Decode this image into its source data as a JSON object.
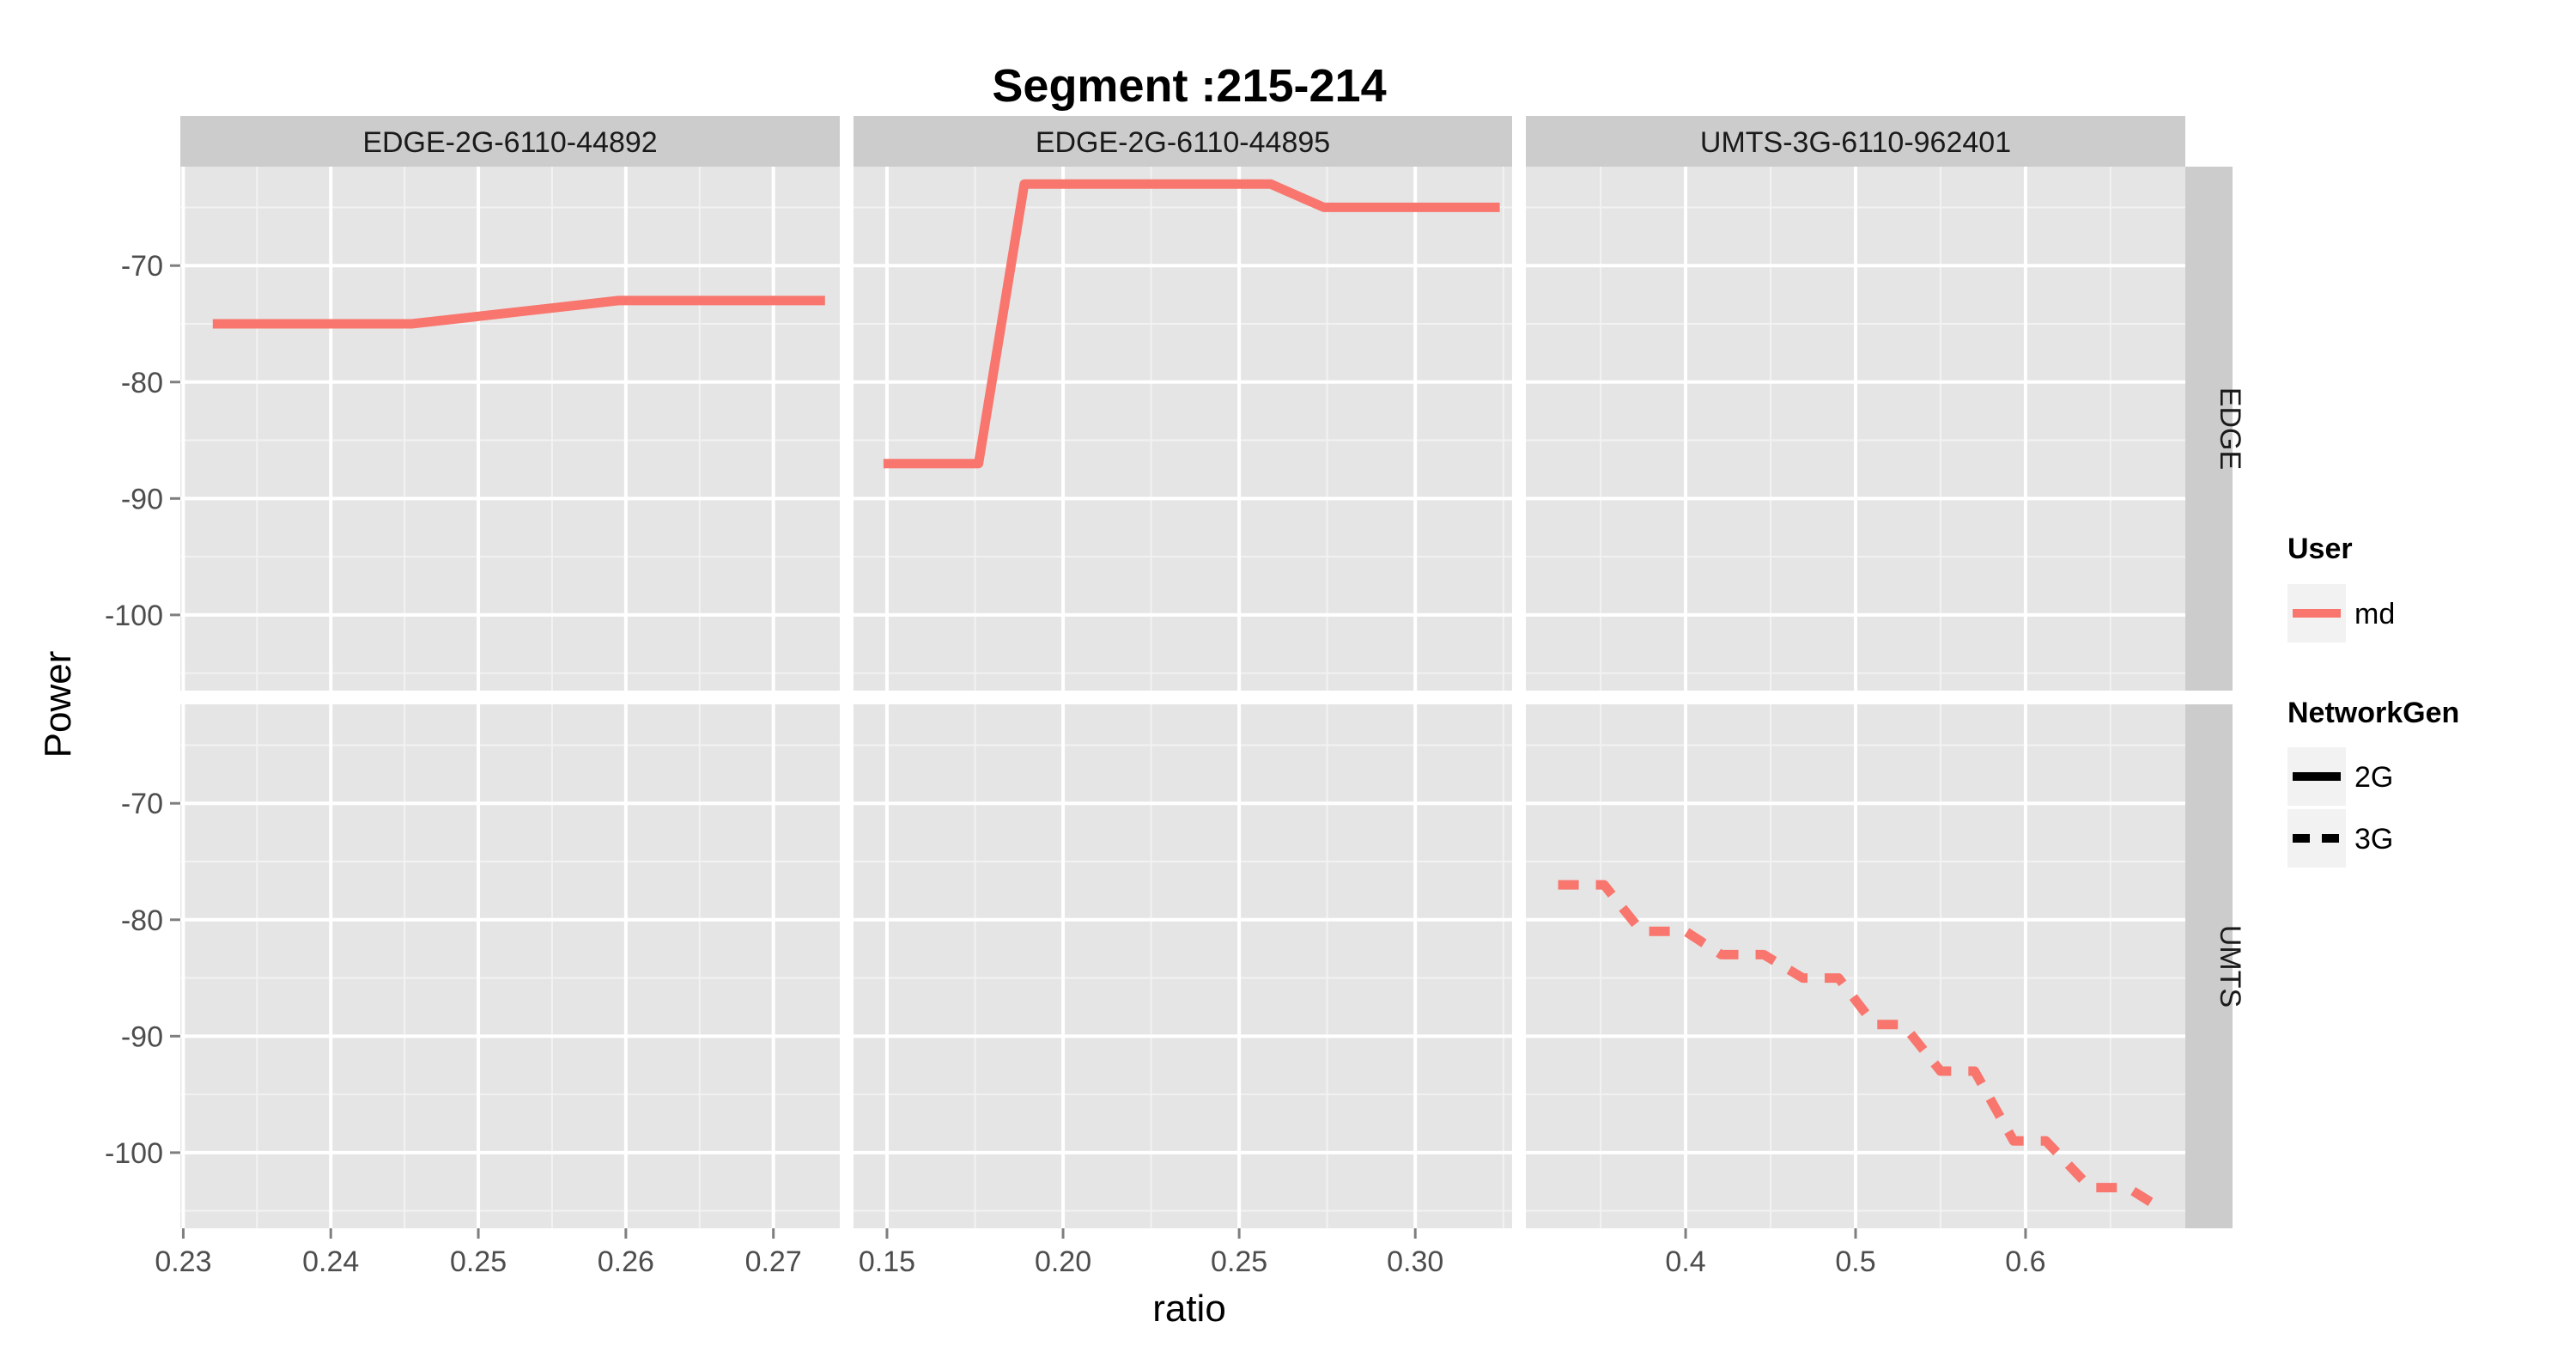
{
  "chart_data": {
    "type": "line",
    "title": "Segment :215-214",
    "xlabel": "ratio",
    "ylabel": "Power",
    "ylim": [
      -106.5,
      -61.5
    ],
    "y_ticks": [
      -70,
      -80,
      -90,
      -100
    ],
    "y_tick_labels": [
      "-70",
      "-80",
      "-90",
      "-100"
    ],
    "grid": true,
    "legend_position": "right",
    "facet_columns": [
      {
        "label": "EDGE-2G-6110-44892",
        "xlim": [
          0.2298,
          0.2745
        ],
        "x_ticks": [
          0.23,
          0.24,
          0.25,
          0.26,
          0.27
        ],
        "x_tick_labels": [
          "0.23",
          "0.24",
          "0.25",
          "0.26",
          "0.27"
        ]
      },
      {
        "label": "EDGE-2G-6110-44895",
        "xlim": [
          0.1405,
          0.3275
        ],
        "x_ticks": [
          0.15,
          0.2,
          0.25,
          0.3
        ],
        "x_tick_labels": [
          "0.15",
          "0.20",
          "0.25",
          "0.30"
        ]
      },
      {
        "label": "UMTS-3G-6110-962401",
        "xlim": [
          0.306,
          0.694
        ],
        "x_ticks": [
          0.4,
          0.5,
          0.6
        ],
        "x_tick_labels": [
          "0.4",
          "0.5",
          "0.6"
        ]
      }
    ],
    "facet_rows": [
      {
        "label": "EDGE"
      },
      {
        "label": "UMTS"
      }
    ],
    "series": [
      {
        "panel": [
          0,
          0
        ],
        "user": "md",
        "network_gen": "2G",
        "x": [
          0.232,
          0.2455,
          0.2595,
          0.2735
        ],
        "y": [
          -75,
          -75,
          -73,
          -73
        ]
      },
      {
        "panel": [
          0,
          1
        ],
        "user": "md",
        "network_gen": "2G",
        "x": [
          0.149,
          0.176,
          0.189,
          0.259,
          0.274,
          0.324
        ],
        "y": [
          -87,
          -87,
          -63,
          -63,
          -65,
          -65
        ]
      },
      {
        "panel": [
          1,
          2
        ],
        "user": "md",
        "network_gen": "3G",
        "x": [
          0.325,
          0.352,
          0.374,
          0.4,
          0.421,
          0.446,
          0.469,
          0.49,
          0.511,
          0.528,
          0.55,
          0.57,
          0.593,
          0.612,
          0.638,
          0.66,
          0.682
        ],
        "y": [
          -77,
          -77,
          -81,
          -81,
          -83,
          -83,
          -85,
          -85,
          -89,
          -89,
          -93,
          -93,
          -99,
          -99,
          -103,
          -103,
          -105
        ]
      }
    ],
    "legend": {
      "user": {
        "title": "User",
        "entries": [
          "md"
        ]
      },
      "network_gen": {
        "title": "NetworkGen",
        "entries": [
          "2G",
          "3G"
        ]
      }
    },
    "colors": {
      "series": "#F8766D",
      "panel_bg": "#E5E5E5",
      "strip_bg": "#CCCCCC",
      "grid_major": "#FFFFFF",
      "grid_minor": "#F2F2F2",
      "legend_key_bg": "#F2F2F2"
    }
  }
}
